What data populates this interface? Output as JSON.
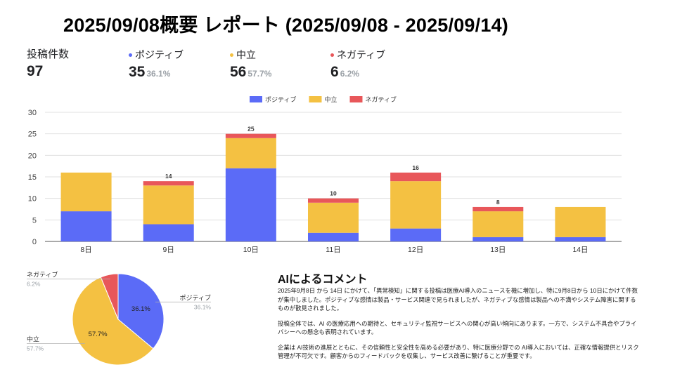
{
  "report": {
    "title": "2025/09/08概要 レポート (2025/09/08 - 2025/09/14)"
  },
  "summary": {
    "total_label": "投稿件数",
    "total_value": "97",
    "positive": {
      "label": "ポジティブ",
      "value": "35",
      "pct": "36.1%",
      "color": "#5B6BF7"
    },
    "neutral": {
      "label": "中立",
      "value": "56",
      "pct": "57.7%",
      "color": "#F4C142"
    },
    "negative": {
      "label": "ネガティブ",
      "value": "6",
      "pct": "6.2%",
      "color": "#E8575A"
    }
  },
  "chart_data": [
    {
      "type": "bar",
      "stacked": true,
      "categories": [
        "8日",
        "9日",
        "10日",
        "11日",
        "12日",
        "13日",
        "14日"
      ],
      "series": [
        {
          "name": "ポジティブ",
          "color": "#5B6BF7",
          "values": [
            7,
            4,
            17,
            2,
            3,
            1,
            1
          ]
        },
        {
          "name": "中立",
          "color": "#F4C142",
          "values": [
            9,
            9,
            7,
            7,
            11,
            6,
            7
          ]
        },
        {
          "name": "ネガティブ",
          "color": "#E8575A",
          "values": [
            0,
            1,
            1,
            1,
            2,
            1,
            0
          ]
        }
      ],
      "totals": [
        "",
        "14",
        "25",
        "10",
        "16",
        "8",
        ""
      ],
      "ylim": [
        0,
        30
      ],
      "yticks": [
        "0",
        "5",
        "10",
        "15",
        "20",
        "25",
        "30"
      ],
      "legend": "top",
      "grid": true
    },
    {
      "type": "pie",
      "slices": [
        {
          "name": "ポジティブ",
          "value": 36.1,
          "label": "36.1%",
          "color": "#5B6BF7"
        },
        {
          "name": "中立",
          "value": 57.7,
          "label": "57.7%",
          "color": "#F4C142"
        },
        {
          "name": "ネガティブ",
          "value": 6.2,
          "label": "6.2%",
          "color": "#E8575A"
        }
      ]
    }
  ],
  "comment": {
    "title": "AIによるコメント",
    "paragraphs": [
      "2025年9月8日 から 14日 にかけて、「異常検知」に関する投稿は医療AI導入のニュースを機に増加し、特に9月8日から 10日にかけて件数が集中しました。ポジティブな感情は製品・サービス関連で見られましたが、ネガティブな感情は製品への不満やシステム障害に関するものが散見されました。",
      "投稿全体では、AI の医療応用への期待と、セキュリティ監視サービスへの関心が高い傾向にあります。一方で、システム不具合やプライバシーへの懸念も表明されています。",
      "企業は AI技術の進展とともに、その信頼性と安全性を高める必要があり、特に医療分野での AI導入においては、正確な情報提供とリスク管理が不可欠です。顧客からのフィードバックを収集し、サービス改善に繋げることが重要です。"
    ]
  }
}
